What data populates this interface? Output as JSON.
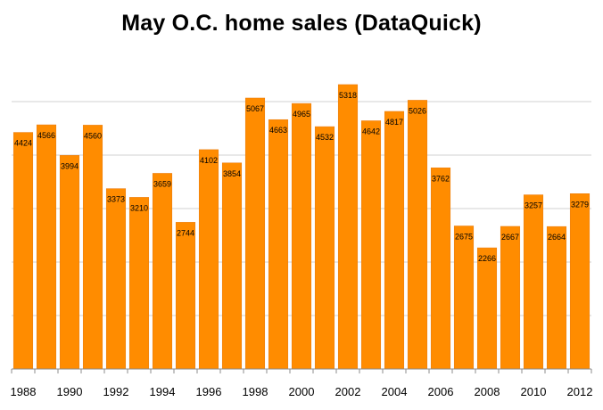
{
  "chart_data": {
    "type": "bar",
    "title": "May O.C. home sales (DataQuick)",
    "xlabel": "",
    "ylabel": "",
    "ylim": [
      0,
      6000
    ],
    "y_gridlines": [
      1000,
      2000,
      3000,
      4000,
      5000
    ],
    "grid": true,
    "legend": "none",
    "bar_color": "#ff8c00",
    "categories": [
      "1988",
      "1989",
      "1990",
      "1991",
      "1992",
      "1993",
      "1994",
      "1995",
      "1996",
      "1997",
      "1998",
      "1999",
      "2000",
      "2001",
      "2002",
      "2003",
      "2004",
      "2005",
      "2006",
      "2007",
      "2008",
      "2009",
      "2010",
      "2011",
      "2012"
    ],
    "x_tick_labels": [
      "1988",
      "",
      "1990",
      "",
      "1992",
      "",
      "1994",
      "",
      "1996",
      "",
      "1998",
      "",
      "2000",
      "",
      "2002",
      "",
      "2004",
      "",
      "2006",
      "",
      "2008",
      "",
      "2010",
      "",
      "2012"
    ],
    "values": [
      4424,
      4566,
      3994,
      4560,
      3373,
      3210,
      3659,
      2744,
      4102,
      3854,
      5067,
      4663,
      4965,
      4532,
      5318,
      4642,
      4817,
      5026,
      3762,
      2675,
      2266,
      2667,
      3257,
      2664,
      3279
    ]
  }
}
